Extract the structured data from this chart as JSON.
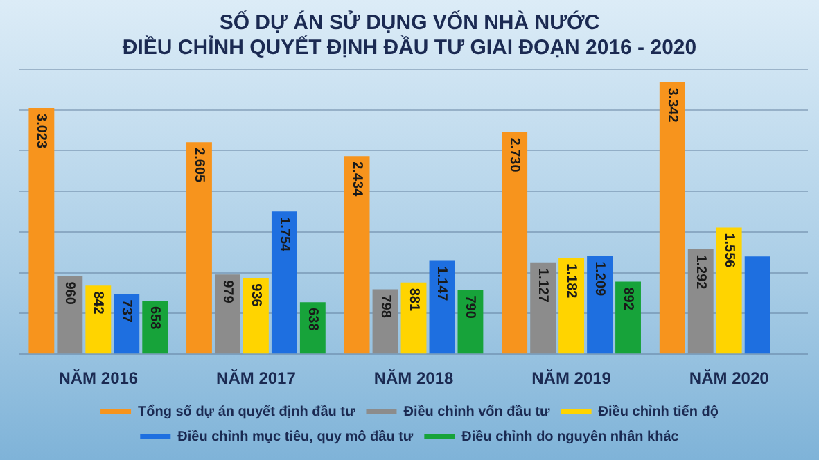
{
  "chart_data": {
    "type": "bar",
    "title": "SỐ DỰ ÁN SỬ DỤNG VỐN NHÀ NƯỚC\nĐIỀU CHỈNH QUYẾT ĐỊNH ĐẦU TƯ GIAI ĐOẠN 2016 - 2020",
    "categories": [
      "NĂM 2016",
      "NĂM 2017",
      "NĂM 2018",
      "NĂM 2019",
      "NĂM 2020"
    ],
    "series": [
      {
        "name": "Tổng số dự án quyết định đầu tư",
        "color": "#f7941d",
        "values": [
          3023,
          2605,
          2434,
          2730,
          3342
        ],
        "value_labels": [
          "3.023",
          "2.605",
          "2.434",
          "2.730",
          "3.342"
        ]
      },
      {
        "name": "Điều chỉnh vốn đầu tư",
        "color": "#8c8c8c",
        "values": [
          960,
          979,
          798,
          1127,
          1292
        ],
        "value_labels": [
          "960",
          "979",
          "798",
          "1.127",
          "1.292"
        ]
      },
      {
        "name": "Điều chỉnh tiến độ",
        "color": "#ffd400",
        "values": [
          842,
          936,
          881,
          1182,
          1556
        ],
        "value_labels": [
          "842",
          "936",
          "881",
          "1.182",
          "1.556"
        ]
      },
      {
        "name": "Điều chỉnh mục tiêu, quy mô đầu tư",
        "color": "#1e6fe0",
        "values": [
          737,
          1754,
          1147,
          1209,
          1200
        ],
        "value_labels": [
          "737",
          "1.754",
          "1.147",
          "1.209",
          null
        ]
      },
      {
        "name": "Điều chỉnh do nguyên nhân khác",
        "color": "#17a33a",
        "values": [
          658,
          638,
          790,
          892,
          null
        ],
        "value_labels": [
          "658",
          "638",
          "790",
          "892",
          null
        ]
      }
    ],
    "ylim": [
      0,
      3500
    ],
    "yticks": [
      {
        "value": 0,
        "label": null
      },
      {
        "value": 500,
        "label": null
      },
      {
        "value": 1000,
        "label": null
      },
      {
        "value": 1500,
        "label": null
      },
      {
        "value": 2000,
        "label": null
      },
      {
        "value": 2500,
        "label": null
      },
      {
        "value": 3000,
        "label": null
      },
      {
        "value": 3500,
        "label": null
      }
    ],
    "grid": "y",
    "legend": "bottom"
  }
}
